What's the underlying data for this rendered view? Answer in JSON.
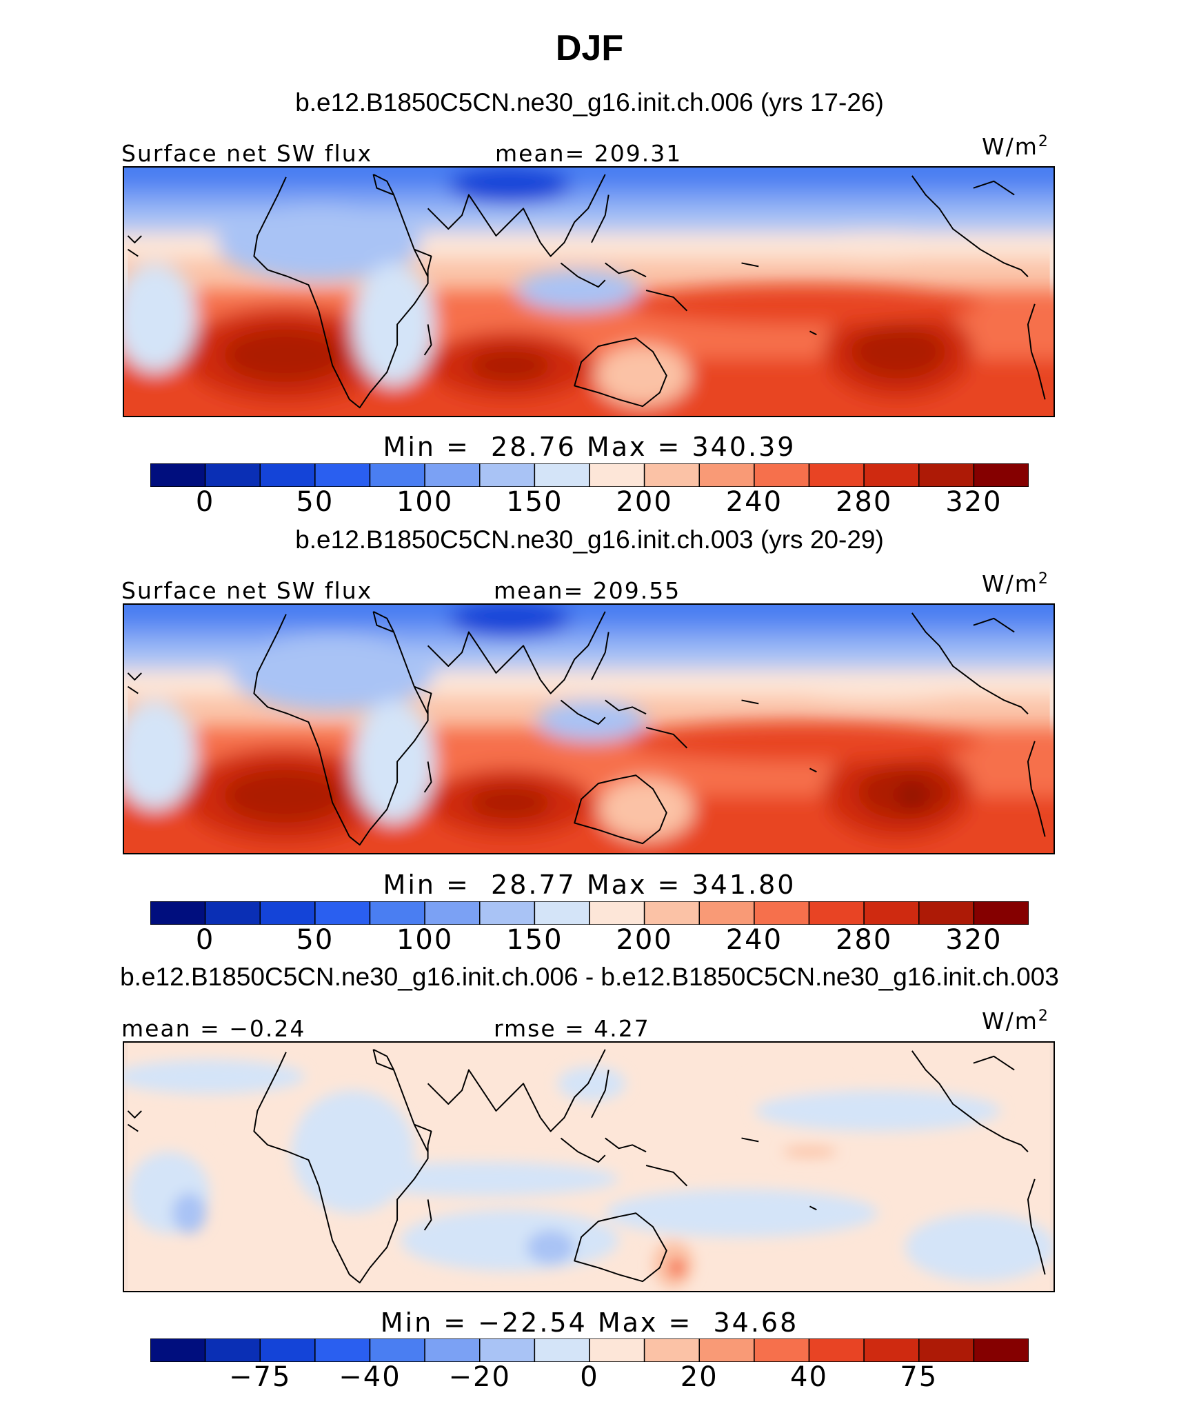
{
  "main_title": "DJF",
  "panels": [
    {
      "case_title": "b.e12.B1850C5CN.ne30_g16.init.ch.006 (yrs 17-26)",
      "left_header": "Surface net SW flux",
      "center_header": "mean= 209.31",
      "units_base": "W/m",
      "units_exp": "2",
      "minmax": "Min =  28.76 Max = 340.39",
      "colorbar_ticks": [
        "0",
        "50",
        "100",
        "150",
        "200",
        "240",
        "280",
        "320"
      ]
    },
    {
      "case_title": "b.e12.B1850C5CN.ne30_g16.init.ch.003 (yrs 20-29)",
      "left_header": "Surface net SW flux",
      "center_header": "mean= 209.55",
      "units_base": "W/m",
      "units_exp": "2",
      "minmax": "Min =  28.77 Max = 341.80",
      "colorbar_ticks": [
        "0",
        "50",
        "100",
        "150",
        "200",
        "240",
        "280",
        "320"
      ]
    },
    {
      "case_title": "b.e12.B1850C5CN.ne30_g16.init.ch.006 - b.e12.B1850C5CN.ne30_g16.init.ch.003",
      "left_header": "mean =  −0.24",
      "center_header": "rmse =    4.27",
      "units_base": "W/m",
      "units_exp": "2",
      "minmax": "Min = −22.54 Max =  34.68",
      "colorbar_ticks": [
        "−75",
        "−40",
        "−20",
        "0",
        "20",
        "40",
        "75"
      ]
    }
  ],
  "chart_data": [
    {
      "type": "heatmap",
      "title": "DJF",
      "subtitle": "b.e12.B1850C5CN.ne30_g16.init.ch.006 (yrs 17-26)",
      "variable": "Surface net SW flux",
      "units": "W/m2",
      "mean": 209.31,
      "min": 28.76,
      "max": 340.39,
      "colorbar_levels": [
        0,
        25,
        50,
        75,
        100,
        125,
        150,
        175,
        200,
        220,
        240,
        260,
        280,
        300,
        320
      ],
      "colorbar_colors": [
        "#000e7e",
        "#0a2fb5",
        "#1444d8",
        "#2a5ff0",
        "#4a7ef2",
        "#7ba1f4",
        "#a9c3f5",
        "#d4e4f8",
        "#fde6d8",
        "#fbc2a6",
        "#f99a76",
        "#f6704c",
        "#e84424",
        "#cf2a10",
        "#ad1a06",
        "#850000"
      ]
    },
    {
      "type": "heatmap",
      "subtitle": "b.e12.B1850C5CN.ne30_g16.init.ch.003 (yrs 20-29)",
      "variable": "Surface net SW flux",
      "units": "W/m2",
      "mean": 209.55,
      "min": 28.77,
      "max": 341.8,
      "colorbar_levels": [
        0,
        25,
        50,
        75,
        100,
        125,
        150,
        175,
        200,
        220,
        240,
        260,
        280,
        300,
        320
      ],
      "colorbar_colors": [
        "#000e7e",
        "#0a2fb5",
        "#1444d8",
        "#2a5ff0",
        "#4a7ef2",
        "#7ba1f4",
        "#a9c3f5",
        "#d4e4f8",
        "#fde6d8",
        "#fbc2a6",
        "#f99a76",
        "#f6704c",
        "#e84424",
        "#cf2a10",
        "#ad1a06",
        "#850000"
      ]
    },
    {
      "type": "heatmap",
      "subtitle": "b.e12.B1850C5CN.ne30_g16.init.ch.006 - b.e12.B1850C5CN.ne30_g16.init.ch.003",
      "units": "W/m2",
      "mean": -0.24,
      "rmse": 4.27,
      "min": -22.54,
      "max": 34.68,
      "colorbar_levels": [
        -100,
        -75,
        -50,
        -40,
        -30,
        -20,
        -10,
        0,
        10,
        20,
        30,
        40,
        50,
        75,
        100
      ],
      "colorbar_colors": [
        "#000e7e",
        "#0a2fb5",
        "#1444d8",
        "#2a5ff0",
        "#4a7ef2",
        "#7ba1f4",
        "#a9c3f5",
        "#d4e4f8",
        "#fde6d8",
        "#fbc2a6",
        "#f99a76",
        "#f6704c",
        "#e84424",
        "#cf2a10",
        "#ad1a06",
        "#850000"
      ]
    }
  ]
}
